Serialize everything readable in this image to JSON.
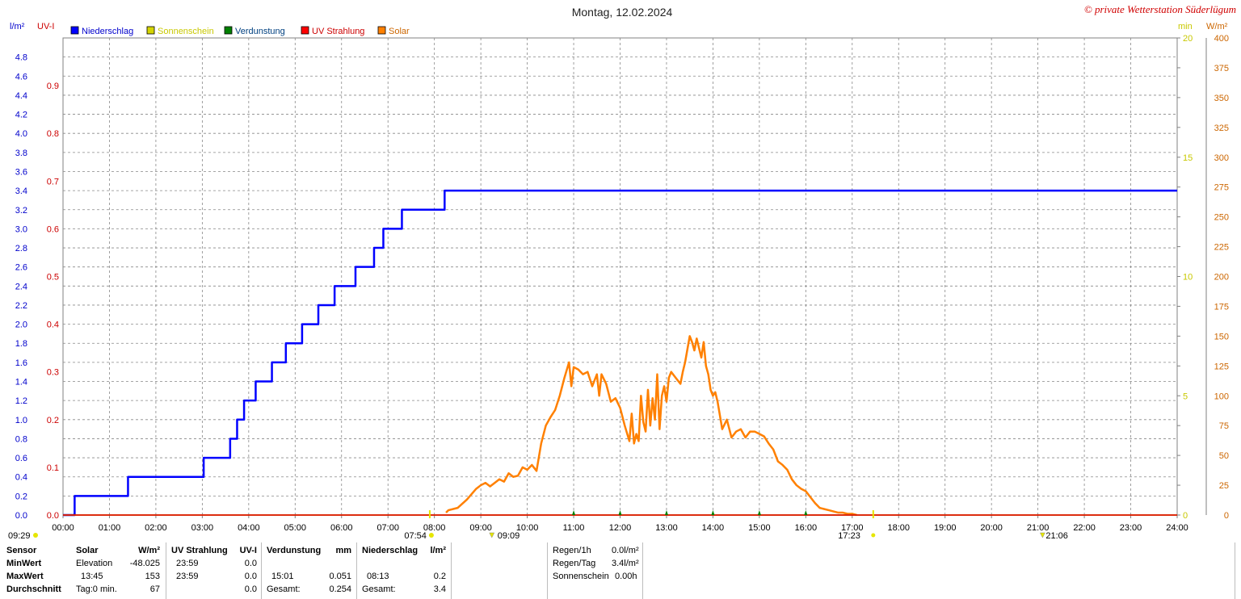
{
  "header": {
    "title": "Montag, 12.02.2024",
    "copyright": "© private Wetterstation Süderlügum"
  },
  "axes": {
    "left1_unit": "l/m²",
    "left2_unit": "UV-I",
    "right1_unit": "min",
    "right2_unit": "W/m²",
    "left1_ticks": [
      "0.0",
      "0.2",
      "0.4",
      "0.6",
      "0.8",
      "1.0",
      "1.2",
      "1.4",
      "1.6",
      "1.8",
      "2.0",
      "2.2",
      "2.4",
      "2.6",
      "2.8",
      "3.0",
      "3.2",
      "3.4",
      "3.6",
      "3.8",
      "4.0",
      "4.2",
      "4.4",
      "4.6",
      "4.8"
    ],
    "left2_ticks": [
      "0.0",
      "0.1",
      "0.2",
      "0.3",
      "0.4",
      "0.5",
      "0.6",
      "0.7",
      "0.8",
      "0.9"
    ],
    "right1_ticks": [
      "0",
      "5",
      "10",
      "15",
      "20"
    ],
    "right2_ticks": [
      "0",
      "25",
      "50",
      "75",
      "100",
      "125",
      "150",
      "175",
      "200",
      "225",
      "250",
      "275",
      "300",
      "325",
      "350",
      "375",
      "400"
    ],
    "x_ticks": [
      "00:00",
      "01:00",
      "02:00",
      "03:00",
      "04:00",
      "05:00",
      "06:00",
      "07:00",
      "08:00",
      "09:00",
      "10:00",
      "11:00",
      "12:00",
      "13:00",
      "14:00",
      "15:00",
      "16:00",
      "17:00",
      "18:00",
      "19:00",
      "20:00",
      "21:00",
      "22:00",
      "23:00",
      "24:00"
    ]
  },
  "legend": [
    {
      "label": "Niederschlag",
      "color": "#0000ff",
      "text_color": "#0000cc"
    },
    {
      "label": "Sonnenschein",
      "color": "#d4d400",
      "text_color": "#c8c800"
    },
    {
      "label": "Verdunstung",
      "color": "#008000",
      "text_color": "#004080"
    },
    {
      "label": "UV Strahlung",
      "color": "#ff0000",
      "text_color": "#cc0000"
    },
    {
      "label": "Solar",
      "color": "#ff8000",
      "text_color": "#cc6600"
    }
  ],
  "markers": {
    "left": "09:29",
    "sunrise": "07:54",
    "solar_noon": "09:09",
    "sunset": "17:23",
    "moon": "21:06"
  },
  "stats": {
    "row_labels": [
      "Sensor",
      "MinWert",
      "MaxWert",
      "Durchschnitt"
    ],
    "solar": {
      "header": "Solar",
      "unit": "W/m²",
      "min_label": "Elevation",
      "min_value": "-48.025",
      "max_time": "13:45",
      "max_value": "153",
      "avg_label": "Tag:0 min.",
      "avg_value": "67"
    },
    "uv": {
      "header": "UV Strahlung",
      "unit": "UV-I",
      "min_time": "23:59",
      "min_value": "0.0",
      "max_time": "23:59",
      "max_value": "0.0",
      "avg_value": "0.0"
    },
    "verdunstung": {
      "header": "Verdunstung",
      "unit": "mm",
      "max_time": "15:01",
      "max_value": "0.051",
      "total_label": "Gesamt:",
      "total_value": "0.254"
    },
    "niederschlag": {
      "header": "Niederschlag",
      "unit": "l/m²",
      "max_time": "08:13",
      "max_value": "0.2",
      "total_label": "Gesamt:",
      "total_value": "3.4"
    },
    "summary": [
      {
        "label": "Regen/1h",
        "value": "0.0l/m²"
      },
      {
        "label": "Regen/Tag",
        "value": "3.4l/m²"
      },
      {
        "label": "Sonnenschein",
        "value": "0.00h"
      }
    ]
  },
  "chart_data": {
    "type": "line",
    "title": "Montag, 12.02.2024",
    "x_unit": "hours",
    "xlim": [
      0,
      24
    ],
    "grid": true,
    "legend_position": "top-left",
    "series": [
      {
        "name": "Niederschlag",
        "axis": "l/m²",
        "ylim": [
          0,
          5.0
        ],
        "step": true,
        "x": [
          0,
          0.25,
          1.4,
          3.03,
          3.6,
          3.75,
          3.9,
          4.15,
          4.5,
          4.8,
          5.15,
          5.5,
          5.85,
          6.3,
          6.7,
          6.9,
          7.3,
          8.22,
          24
        ],
        "y": [
          0,
          0.2,
          0.4,
          0.6,
          0.8,
          1.0,
          1.2,
          1.4,
          1.6,
          1.8,
          2.0,
          2.2,
          2.4,
          2.6,
          2.8,
          3.0,
          3.2,
          3.4,
          3.4
        ]
      },
      {
        "name": "Solar",
        "axis": "W/m²",
        "ylim": [
          0,
          400
        ],
        "x": [
          8.25,
          8.3,
          8.5,
          8.7,
          8.9,
          9.0,
          9.1,
          9.2,
          9.3,
          9.4,
          9.5,
          9.6,
          9.7,
          9.8,
          9.9,
          10.0,
          10.1,
          10.2,
          10.3,
          10.4,
          10.5,
          10.6,
          10.7,
          10.8,
          10.9,
          10.95,
          11.0,
          11.1,
          11.2,
          11.3,
          11.4,
          11.5,
          11.55,
          11.6,
          11.7,
          11.8,
          11.9,
          12.0,
          12.1,
          12.2,
          12.25,
          12.3,
          12.35,
          12.4,
          12.45,
          12.5,
          12.55,
          12.6,
          12.65,
          12.7,
          12.75,
          12.8,
          12.85,
          12.9,
          12.95,
          13.0,
          13.05,
          13.1,
          13.2,
          13.3,
          13.35,
          13.4,
          13.5,
          13.55,
          13.6,
          13.65,
          13.7,
          13.75,
          13.8,
          13.85,
          13.9,
          13.95,
          14.0,
          14.05,
          14.1,
          14.2,
          14.3,
          14.4,
          14.5,
          14.6,
          14.7,
          14.8,
          14.9,
          15.0,
          15.1,
          15.2,
          15.3,
          15.4,
          15.5,
          15.6,
          15.7,
          15.8,
          15.9,
          16.0,
          16.1,
          16.2,
          16.3,
          16.4,
          16.5,
          16.6,
          16.7,
          16.8,
          16.9,
          17.0,
          17.1
        ],
        "y": [
          2,
          4,
          6,
          13,
          22,
          25,
          27,
          24,
          27,
          30,
          28,
          35,
          32,
          33,
          40,
          38,
          42,
          37,
          60,
          75,
          82,
          88,
          100,
          115,
          128,
          108,
          124,
          122,
          118,
          120,
          108,
          118,
          100,
          118,
          110,
          95,
          98,
          90,
          75,
          62,
          85,
          60,
          68,
          62,
          100,
          78,
          70,
          105,
          75,
          98,
          80,
          118,
          72,
          100,
          108,
          95,
          115,
          120,
          115,
          110,
          120,
          128,
          150,
          145,
          138,
          148,
          140,
          132,
          145,
          125,
          118,
          105,
          100,
          103,
          95,
          72,
          80,
          65,
          70,
          72,
          65,
          70,
          70,
          68,
          66,
          60,
          55,
          45,
          42,
          38,
          30,
          25,
          22,
          20,
          15,
          10,
          6,
          5,
          4,
          3,
          2,
          2,
          1,
          1,
          0
        ]
      },
      {
        "name": "Sonnenschein",
        "axis": "min",
        "ylim": [
          0,
          20
        ],
        "x": [
          0,
          24
        ],
        "y": [
          0,
          0
        ]
      },
      {
        "name": "Verdunstung",
        "axis": "l/m²",
        "ylim": [
          0,
          5.0
        ],
        "x": [
          0,
          24
        ],
        "y": [
          0,
          0
        ]
      },
      {
        "name": "UV Strahlung",
        "axis": "UV-I",
        "ylim": [
          0,
          1.0
        ],
        "x": [
          0,
          24
        ],
        "y": [
          0,
          0
        ]
      }
    ]
  }
}
